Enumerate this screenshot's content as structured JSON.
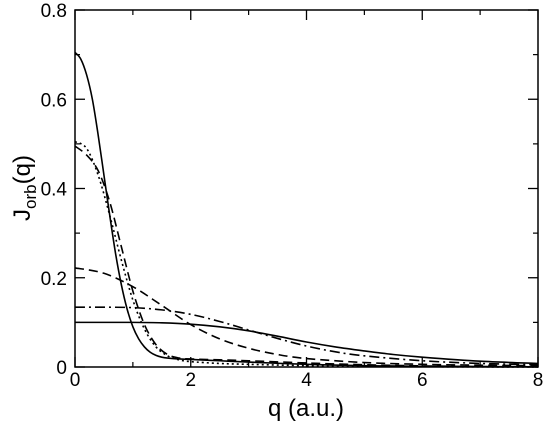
{
  "chart_data": {
    "type": "line",
    "xlabel": "q (a.u.)",
    "ylabel": {
      "main": "J",
      "sub": "orb",
      "suffix": "(q)"
    },
    "xlim": [
      0,
      8
    ],
    "ylim": [
      0,
      0.8
    ],
    "xticks": [
      0,
      2,
      4,
      6,
      8
    ],
    "yticks": [
      0,
      0.2,
      0.4,
      0.6,
      0.8
    ],
    "xtick_labels": [
      "0",
      "2",
      "4",
      "6",
      "8"
    ],
    "ytick_labels": [
      "0",
      "0.2",
      "0.4",
      "0.6",
      "0.8"
    ],
    "grid": false,
    "legend": "none",
    "series": [
      {
        "style": "solid",
        "x": [
          0,
          0.1,
          0.2,
          0.3,
          0.4,
          0.5,
          0.6,
          0.7,
          0.8,
          0.9,
          1.0,
          1.1,
          1.2,
          1.3,
          1.4,
          1.5,
          1.6,
          1.8,
          2.0,
          2.5,
          3.0,
          4.0,
          5.0,
          6.0,
          7.0,
          8.0
        ],
        "y": [
          0.705,
          0.69,
          0.655,
          0.6,
          0.52,
          0.43,
          0.34,
          0.255,
          0.185,
          0.13,
          0.09,
          0.063,
          0.045,
          0.033,
          0.026,
          0.022,
          0.02,
          0.018,
          0.017,
          0.014,
          0.011,
          0.006,
          0.003,
          0.0015,
          0.0007,
          0.0003
        ]
      },
      {
        "style": "dotted",
        "x": [
          0,
          0.2,
          0.4,
          0.6,
          0.8,
          1.0,
          1.2,
          1.4,
          1.6,
          1.8,
          2.0,
          2.5,
          3.0,
          4.0,
          5.0,
          6.0,
          7.0,
          8.0
        ],
        "y": [
          0.505,
          0.49,
          0.43,
          0.34,
          0.24,
          0.15,
          0.085,
          0.045,
          0.025,
          0.016,
          0.012,
          0.008,
          0.006,
          0.003,
          0.0015,
          0.0007,
          0.0003,
          0.0001
        ]
      },
      {
        "style": "dashed",
        "x": [
          0,
          0.2,
          0.4,
          0.6,
          0.8,
          1.0,
          1.2,
          1.4,
          1.6,
          1.8,
          2.0,
          2.5,
          3.0,
          4.0,
          5.0,
          6.0,
          7.0,
          8.0
        ],
        "y": [
          0.495,
          0.475,
          0.44,
          0.37,
          0.27,
          0.17,
          0.095,
          0.05,
          0.028,
          0.02,
          0.018,
          0.016,
          0.014,
          0.009,
          0.005,
          0.0025,
          0.001,
          0.0005
        ]
      },
      {
        "style": "dashed",
        "x": [
          0,
          0.5,
          1.0,
          1.5,
          2.0,
          2.5,
          3.0,
          3.5,
          4.0,
          5.0,
          6.0,
          7.0,
          8.0
        ],
        "y": [
          0.222,
          0.21,
          0.18,
          0.138,
          0.095,
          0.063,
          0.042,
          0.028,
          0.019,
          0.01,
          0.006,
          0.004,
          0.003
        ]
      },
      {
        "style": "dashdot",
        "x": [
          0,
          0.5,
          1.0,
          1.5,
          2.0,
          2.5,
          3.0,
          3.5,
          4.0,
          4.5,
          5.0,
          6.0,
          7.0,
          8.0
        ],
        "y": [
          0.134,
          0.134,
          0.133,
          0.128,
          0.118,
          0.102,
          0.083,
          0.064,
          0.047,
          0.034,
          0.025,
          0.014,
          0.008,
          0.005
        ]
      },
      {
        "style": "solid",
        "x": [
          0,
          0.5,
          1.0,
          1.5,
          2.0,
          2.5,
          3.0,
          3.5,
          4.0,
          4.5,
          5.0,
          5.5,
          6.0,
          7.0,
          8.0
        ],
        "y": [
          0.1,
          0.1,
          0.1,
          0.099,
          0.096,
          0.09,
          0.081,
          0.069,
          0.056,
          0.045,
          0.036,
          0.028,
          0.022,
          0.013,
          0.008
        ]
      }
    ]
  }
}
